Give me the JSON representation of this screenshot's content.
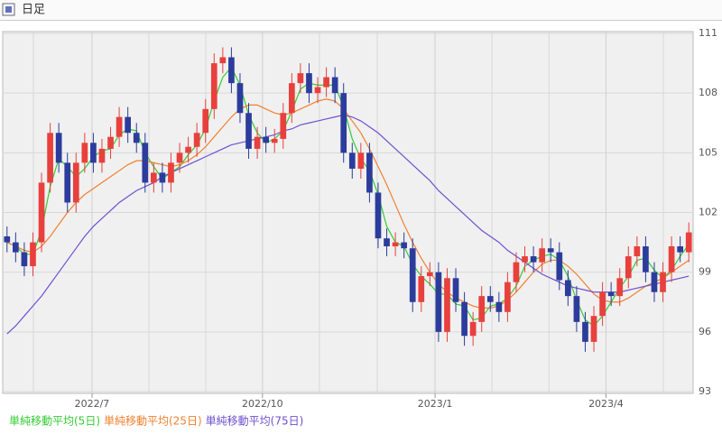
{
  "chart_data": {
    "type": "candlestick",
    "title": "日足",
    "ylim": [
      93,
      111
    ],
    "yticks": [
      93,
      96,
      99,
      102,
      105,
      108,
      111
    ],
    "xlim": [
      -0.5,
      79.5
    ],
    "xticks": [
      {
        "value": 9.85,
        "label": "2022/7"
      },
      {
        "value": 29.6,
        "label": "2022/10"
      },
      {
        "value": 49.6,
        "label": "2023/1"
      },
      {
        "value": 69.4,
        "label": "2023/4"
      }
    ],
    "xgrid": [
      3.06,
      16.44,
      23.03,
      36.2,
      42.9,
      56.2,
      62.8,
      76.05
    ],
    "grid": true,
    "candles": {
      "up_color": "#e8403c",
      "down_color": "#2c3c9c",
      "open": [
        100.8,
        100.5,
        100,
        99.3,
        100.5,
        103.5,
        106,
        104.5,
        102.5,
        104.5,
        105.5,
        104.5,
        105.2,
        105.8,
        106.8,
        106,
        105.5,
        103.5,
        104,
        103.5,
        104.5,
        105,
        105.3,
        106,
        107.2,
        109.5,
        109.8,
        108.5,
        107,
        105.2,
        105.8,
        105.5,
        105.7,
        107,
        108.5,
        109,
        108,
        108.3,
        108.8,
        108,
        105,
        104.2,
        105,
        103,
        100.7,
        100.3,
        100.5,
        100.2,
        97.5,
        98.8,
        99,
        96,
        98.7,
        97.5,
        95.8,
        96.5,
        97.8,
        97.5,
        97,
        98.5,
        99.5,
        99.8,
        99.5,
        100.2,
        100,
        98.6,
        97.8,
        96.5,
        95.5,
        96.8,
        98,
        97.8,
        98.7,
        99.8,
        100.3,
        99,
        98,
        99,
        100.3,
        100
      ],
      "high": [
        101.3,
        101.0,
        100.5,
        101.0,
        104.0,
        106.5,
        106.5,
        105.0,
        105.0,
        106.0,
        106.0,
        105.7,
        106.3,
        107.3,
        107.3,
        106.5,
        106.0,
        104.5,
        104.5,
        105.0,
        105.5,
        105.8,
        106.5,
        107.7,
        110.0,
        110.3,
        110.3,
        109.0,
        107.5,
        106.3,
        106.3,
        106.2,
        107.5,
        109.0,
        109.5,
        109.5,
        108.8,
        109.3,
        109.3,
        108.5,
        105.5,
        105.5,
        105.5,
        103.5,
        101.2,
        101.0,
        101.0,
        100.7,
        99.3,
        99.5,
        99.5,
        99.2,
        99.2,
        98.0,
        97.0,
        98.3,
        98.3,
        98.0,
        99.0,
        100.0,
        100.3,
        100.3,
        100.7,
        100.7,
        100.5,
        99.1,
        98.3,
        97.0,
        97.3,
        98.5,
        98.5,
        99.2,
        100.3,
        100.8,
        100.8,
        99.5,
        99.5,
        100.8,
        100.8,
        101.5
      ],
      "low": [
        100.0,
        99.5,
        98.8,
        98.8,
        100.0,
        103.0,
        104.0,
        102.0,
        102.0,
        104.0,
        104.0,
        104.0,
        104.7,
        105.3,
        105.5,
        105.0,
        103.0,
        103.0,
        103.0,
        103.0,
        104.0,
        104.5,
        104.8,
        105.5,
        106.7,
        109.0,
        108.0,
        106.5,
        104.7,
        104.7,
        105.0,
        105.0,
        105.2,
        106.5,
        108.0,
        107.5,
        107.5,
        107.8,
        107.5,
        104.5,
        103.7,
        103.7,
        102.5,
        100.2,
        99.8,
        99.8,
        99.7,
        97.0,
        97.0,
        98.3,
        95.5,
        95.5,
        97.0,
        95.3,
        95.3,
        96.0,
        97.0,
        96.5,
        96.5,
        98.0,
        99.0,
        99.0,
        99.0,
        99.5,
        98.1,
        97.3,
        96.0,
        95.0,
        95.0,
        96.3,
        97.3,
        97.3,
        98.2,
        99.3,
        98.5,
        97.5,
        97.5,
        98.5,
        99.5,
        99.5
      ],
      "close": [
        100.5,
        100,
        99.3,
        100.5,
        103.5,
        106,
        104.5,
        102.5,
        104.5,
        105.5,
        104.5,
        105.2,
        105.8,
        106.8,
        106,
        105.5,
        103.5,
        104,
        103.5,
        104.5,
        105,
        105.3,
        106,
        107.2,
        109.5,
        109.8,
        108.5,
        107,
        105.2,
        105.8,
        105.5,
        105.7,
        107,
        108.5,
        109,
        108,
        108.3,
        108.8,
        108,
        105,
        104.2,
        105,
        103,
        100.7,
        100.3,
        100.5,
        100.2,
        97.5,
        98.8,
        99,
        96,
        98.7,
        97.5,
        95.8,
        96.5,
        97.8,
        97.5,
        97,
        98.5,
        99.5,
        99.8,
        99.5,
        100.2,
        100,
        98.6,
        97.8,
        96.5,
        95.5,
        96.8,
        98,
        97.8,
        98.7,
        99.8,
        100.3,
        99,
        98,
        99,
        100.3,
        100,
        101
      ]
    },
    "series": [
      {
        "name": "単純移動平均(5日)",
        "color": "#33cc33",
        "values": [
          100.5,
          100.3,
          99.9,
          99.9,
          101.1,
          103.3,
          104.7,
          104.3,
          103.8,
          104.2,
          104.8,
          105.1,
          105.2,
          105.9,
          106.2,
          106.1,
          105.0,
          104.3,
          103.7,
          104.0,
          104.3,
          104.9,
          105.4,
          106.2,
          107.6,
          108.8,
          109.3,
          108.4,
          106.9,
          106.0,
          105.5,
          105.7,
          106.1,
          107.1,
          108.2,
          108.5,
          108.4,
          108.4,
          108.4,
          107.3,
          105.7,
          104.7,
          104.1,
          102.9,
          101.3,
          100.5,
          100.3,
          99.4,
          98.8,
          98.4,
          97.9,
          97.9,
          97.4,
          97.3,
          96.6,
          96.7,
          97.3,
          97.4,
          97.7,
          98.3,
          99.3,
          99.6,
          99.8,
          99.9,
          99.6,
          98.8,
          97.6,
          96.6,
          96.3,
          96.8,
          97.5,
          98.2,
          98.8,
          99.6,
          99.7,
          99.1,
          98.7,
          99.1,
          99.8,
          100.4
        ]
      },
      {
        "name": "単純移動平均(25日)",
        "color": "#f08030",
        "values": [
          100.5,
          100.3,
          100.1,
          100.0,
          100.3,
          100.8,
          101.4,
          102.0,
          102.5,
          102.9,
          103.2,
          103.5,
          103.8,
          104.1,
          104.4,
          104.6,
          104.6,
          104.5,
          104.4,
          104.3,
          104.4,
          104.6,
          104.9,
          105.3,
          105.8,
          106.3,
          106.8,
          107.2,
          107.4,
          107.4,
          107.2,
          107.0,
          106.9,
          107.0,
          107.2,
          107.4,
          107.6,
          107.7,
          107.6,
          107.2,
          106.6,
          106.0,
          105.2,
          104.3,
          103.4,
          102.4,
          101.4,
          100.5,
          99.7,
          99.0,
          98.4,
          98.0,
          97.7,
          97.5,
          97.3,
          97.2,
          97.2,
          97.3,
          97.6,
          98.0,
          98.5,
          99.0,
          99.4,
          99.6,
          99.6,
          99.3,
          98.9,
          98.4,
          97.9,
          97.6,
          97.5,
          97.5,
          97.7,
          98.0,
          98.3,
          98.5,
          98.7,
          99.0,
          99.3,
          99.6
        ]
      },
      {
        "name": "単純移動平均(75日)",
        "color": "#7050d0",
        "values": [
          95.9,
          96.3,
          96.8,
          97.3,
          97.8,
          98.4,
          99.0,
          99.6,
          100.2,
          100.8,
          101.3,
          101.7,
          102.1,
          102.5,
          102.8,
          103.1,
          103.3,
          103.5,
          103.8,
          104.0,
          104.2,
          104.4,
          104.6,
          104.8,
          105.0,
          105.2,
          105.4,
          105.5,
          105.6,
          105.7,
          105.8,
          105.9,
          106.1,
          106.2,
          106.4,
          106.5,
          106.6,
          106.7,
          106.8,
          106.9,
          106.8,
          106.6,
          106.3,
          106.0,
          105.6,
          105.2,
          104.8,
          104.4,
          104.0,
          103.6,
          103.1,
          102.7,
          102.3,
          101.9,
          101.5,
          101.1,
          100.8,
          100.5,
          100.1,
          99.8,
          99.5,
          99.2,
          98.9,
          98.7,
          98.5,
          98.3,
          98.2,
          98.1,
          98.0,
          98.0,
          98.0,
          98.0,
          98.1,
          98.2,
          98.3,
          98.4,
          98.5,
          98.6,
          98.7,
          98.8
        ]
      }
    ]
  }
}
